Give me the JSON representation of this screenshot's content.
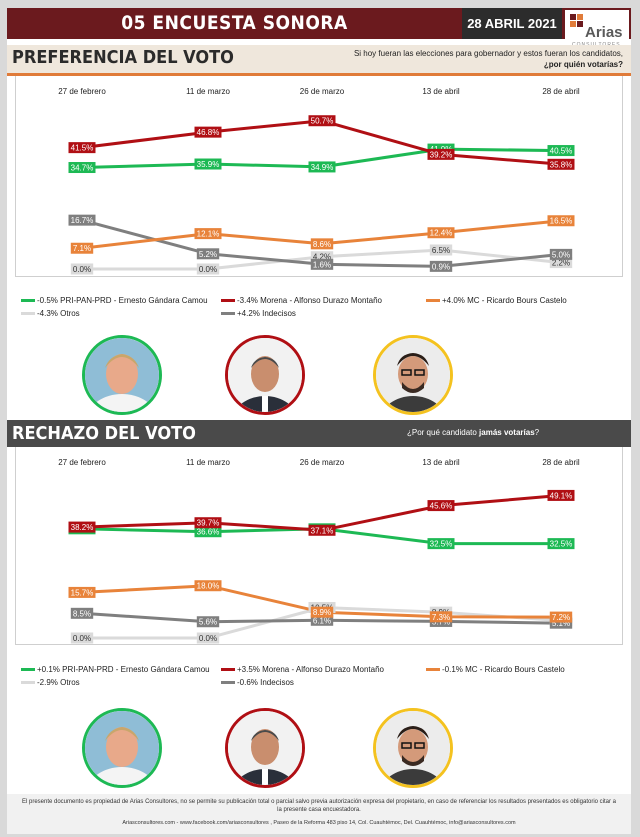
{
  "header": {
    "title": "05 ENCUESTA SONORA",
    "date": "28 ABRIL 2021",
    "logo_name": "Arias",
    "logo_sub": "CONSULTORES"
  },
  "section_preferencia": {
    "heading": "PREFERENCIA DEL VOTO",
    "question_line1": "Si hoy fueran las elecciones para gobernador y estos fueran los candidatos,",
    "question_line2": "¿por quién votarías?"
  },
  "section_rechazo": {
    "heading": "RECHAZO DEL VOTO",
    "question_prefix": "¿Por qué candidato ",
    "question_bold": "jamás votarías",
    "question_suffix": "?"
  },
  "colors": {
    "pri": "#1db954",
    "morena": "#b00f14",
    "mc": "#e8833a",
    "otros": "#dadada",
    "indecisos": "#7f7f7f"
  },
  "chart_data": [
    {
      "type": "line",
      "title": "PREFERENCIA DEL VOTO",
      "categories": [
        "27 de febrero",
        "11 de marzo",
        "26 de marzo",
        "13 de abril",
        "28 de abril"
      ],
      "series": [
        {
          "key": "pri",
          "name": "-0.5% PRI-PAN-PRD - Ernesto Gándara Camou",
          "values": [
            34.7,
            35.9,
            34.9,
            41.0,
            40.5
          ]
        },
        {
          "key": "morena",
          "name": "-3.4% Morena - Alfonso Durazo Montaño",
          "values": [
            41.5,
            46.8,
            50.7,
            39.2,
            35.8
          ]
        },
        {
          "key": "mc",
          "name": "+4.0% MC - Ricardo Bours Castelo",
          "values": [
            7.1,
            12.1,
            8.6,
            12.4,
            16.5
          ]
        },
        {
          "key": "otros",
          "name": "-4.3% Otros",
          "values": [
            0.0,
            0.0,
            4.2,
            6.5,
            2.2
          ]
        },
        {
          "key": "indecisos",
          "name": "+4.2% Indecisos",
          "values": [
            16.7,
            5.2,
            1.6,
            0.9,
            5.0
          ]
        }
      ]
    },
    {
      "type": "line",
      "title": "RECHAZO DEL VOTO",
      "categories": [
        "27 de febrero",
        "11 de marzo",
        "26 de marzo",
        "13 de abril",
        "28 de abril"
      ],
      "series": [
        {
          "key": "pri",
          "name": "+0.1% PRI-PAN-PRD - Ernesto Gándara Camou",
          "values": [
            37.6,
            36.6,
            37.6,
            32.5,
            32.5
          ]
        },
        {
          "key": "morena",
          "name": "+3.5% Morena - Alfonso Durazo Montaño",
          "values": [
            38.2,
            39.7,
            37.1,
            45.6,
            49.1
          ]
        },
        {
          "key": "mc",
          "name": "-0.1% MC - Ricardo Bours Castelo",
          "values": [
            15.7,
            18.0,
            8.9,
            7.3,
            7.2
          ]
        },
        {
          "key": "otros",
          "name": "-2.9% Otros",
          "values": [
            0.0,
            0.0,
            10.5,
            8.9,
            6.0
          ]
        },
        {
          "key": "indecisos",
          "name": "-0.6% Indecisos",
          "values": [
            8.5,
            5.6,
            6.1,
            5.7,
            5.1
          ]
        }
      ]
    }
  ],
  "footer": {
    "disclaimer": "El presente documento es propiedad de Arias Consultores, no se permite su publicación total o parcial salvo previa autorización expresa del propietario, en caso de referenciar los resultados presentados es obligatorio citar a la presente casa encuestadora.",
    "address": "Ariasconsultores.com -  www.facebook.com/ariasconsultores , Paseo de la Reforma 483 piso 14, Col. Cuauhtémoc, Del. Cuauhtémoc, info@ariasconsultores.com"
  }
}
